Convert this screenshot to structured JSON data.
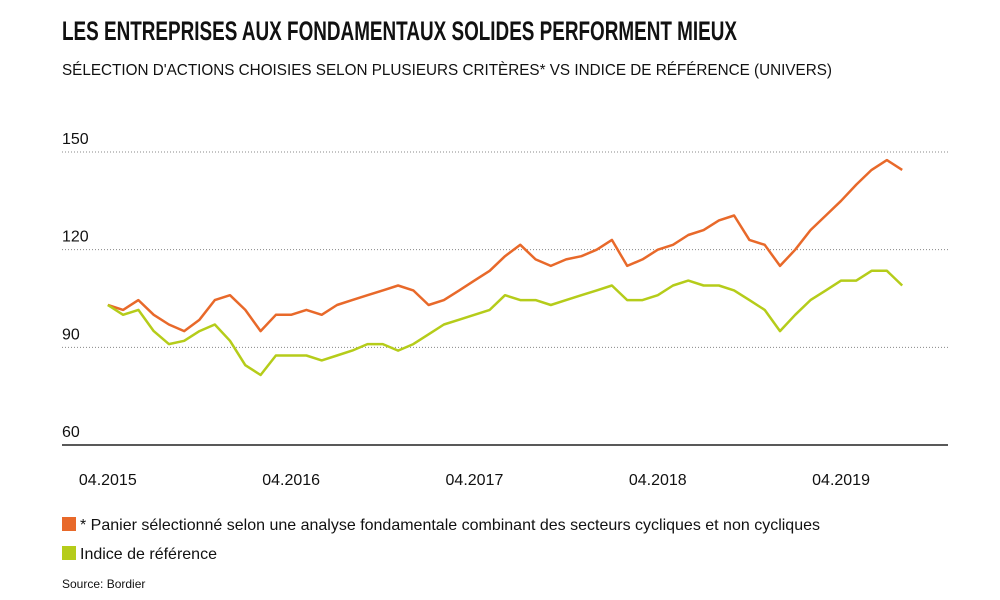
{
  "chart_data": {
    "type": "line",
    "title": "LES ENTREPRISES AUX FONDAMENTAUX SOLIDES PERFORMENT MIEUX",
    "subtitle": "SÉLECTION D'ACTIONS CHOISIES SELON PLUSIEURS CRITÈRES* VS INDICE DE RÉFÉRENCE (UNIVERS)",
    "source": "Source: Bordier",
    "x": [
      "2015-04",
      "2015-05",
      "2015-06",
      "2015-07",
      "2015-08",
      "2015-09",
      "2015-10",
      "2015-11",
      "2015-12",
      "2016-01",
      "2016-02",
      "2016-03",
      "2016-04",
      "2016-05",
      "2016-06",
      "2016-07",
      "2016-08",
      "2016-09",
      "2016-10",
      "2016-11",
      "2016-12",
      "2017-01",
      "2017-02",
      "2017-03",
      "2017-04",
      "2017-05",
      "2017-06",
      "2017-07",
      "2017-08",
      "2017-09",
      "2017-10",
      "2017-11",
      "2017-12",
      "2018-01",
      "2018-02",
      "2018-03",
      "2018-04",
      "2018-05",
      "2018-06",
      "2018-07",
      "2018-08",
      "2018-09",
      "2018-10",
      "2018-11",
      "2018-12",
      "2019-01",
      "2019-02",
      "2019-03",
      "2019-04",
      "2019-05",
      "2019-06",
      "2019-07",
      "2019-08"
    ],
    "series": [
      {
        "name": "* Panier sélectionné selon une analyse fondamentale combinant des secteurs cycliques et non cycliques",
        "color": "#e8692a",
        "values": [
          103,
          101.5,
          104.5,
          100,
          97,
          95,
          98.5,
          104.5,
          106,
          101.5,
          95,
          100,
          100,
          101.5,
          100,
          103,
          104.5,
          106,
          107.5,
          109,
          107.5,
          103,
          104.5,
          107.5,
          110.5,
          113.5,
          118,
          121.5,
          117,
          115,
          117,
          118,
          120,
          123,
          115,
          117,
          120,
          121.5,
          124.5,
          126,
          129,
          130.5,
          123,
          121.5,
          115,
          120,
          126,
          130.5,
          135,
          140,
          144.5,
          147.5,
          144.5
        ]
      },
      {
        "name": "Indice de référence",
        "color": "#b5cc1a",
        "values": [
          103,
          100,
          101.5,
          95,
          91,
          92,
          95,
          97,
          92,
          84.5,
          81.5,
          87.5,
          87.5,
          87.5,
          86,
          87.5,
          89,
          91,
          91,
          89,
          91,
          94,
          97,
          98.5,
          100,
          101.5,
          106,
          104.5,
          104.5,
          103,
          104.5,
          106,
          107.5,
          109,
          104.5,
          104.5,
          106,
          109,
          110.5,
          109,
          109,
          107.5,
          104.5,
          101.5,
          95,
          100,
          104.5,
          107.5,
          110.5,
          110.5,
          113.5,
          113.5,
          109
        ]
      }
    ],
    "xlim": [
      "2015-01",
      "2019-11"
    ],
    "xticks": [
      {
        "value": "2015-04",
        "label": "04.2015"
      },
      {
        "value": "2016-04",
        "label": "04.2016"
      },
      {
        "value": "2017-04",
        "label": "04.2017"
      },
      {
        "value": "2018-04",
        "label": "04.2018"
      },
      {
        "value": "2019-04",
        "label": "04.2019"
      }
    ],
    "ylim": [
      60,
      150
    ],
    "yticks": [
      60,
      90,
      120,
      150
    ],
    "grid": true
  }
}
